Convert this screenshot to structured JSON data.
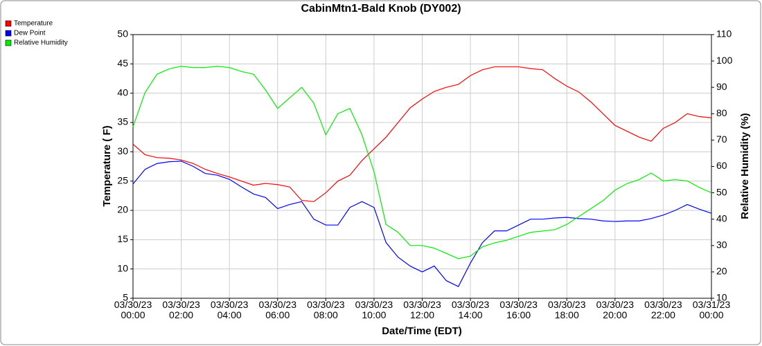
{
  "chart_data": {
    "type": "line",
    "title": "CabinMtn1-Bald Knob (DY002)",
    "xlabel": "Date/Time (EDT)",
    "ylabel": "Temperature ( F)",
    "y2label": "Relative Humidity (%)",
    "legend": "top-left",
    "grid": true,
    "x": [
      "03/30/23 00:00",
      "03/30/23 00:30",
      "03/30/23 01:00",
      "03/30/23 01:30",
      "03/30/23 02:00",
      "03/30/23 02:30",
      "03/30/23 03:00",
      "03/30/23 03:30",
      "03/30/23 04:00",
      "03/30/23 04:30",
      "03/30/23 05:00",
      "03/30/23 05:30",
      "03/30/23 06:00",
      "03/30/23 06:30",
      "03/30/23 07:00",
      "03/30/23 07:30",
      "03/30/23 08:00",
      "03/30/23 08:30",
      "03/30/23 09:00",
      "03/30/23 09:30",
      "03/30/23 10:00",
      "03/30/23 10:30",
      "03/30/23 11:00",
      "03/30/23 11:30",
      "03/30/23 12:00",
      "03/30/23 12:30",
      "03/30/23 13:00",
      "03/30/23 13:30",
      "03/30/23 14:00",
      "03/30/23 14:30",
      "03/30/23 15:00",
      "03/30/23 15:30",
      "03/30/23 16:00",
      "03/30/23 16:30",
      "03/30/23 17:00",
      "03/30/23 17:30",
      "03/30/23 18:00",
      "03/30/23 18:30",
      "03/30/23 19:00",
      "03/30/23 19:30",
      "03/30/23 20:00",
      "03/30/23 20:30",
      "03/30/23 21:00",
      "03/30/23 21:30",
      "03/30/23 22:00",
      "03/30/23 22:30",
      "03/30/23 23:00",
      "03/30/23 23:30",
      "03/31/23 00:00"
    ],
    "series": [
      {
        "name": "Temperature",
        "color": "#ff0000",
        "values": [
          31.3,
          29.5,
          29,
          28.9,
          28.6,
          28,
          27,
          26.3,
          25.7,
          25,
          24.3,
          24.6,
          24.4,
          24,
          21.7,
          21.5,
          23,
          25,
          26,
          28.5,
          30.5,
          32.5,
          35,
          37.5,
          39,
          40.3,
          41,
          41.5,
          43,
          44,
          44.5,
          44.5,
          44.5,
          44.2,
          44,
          42.5,
          41.2,
          40.2,
          38.5,
          36.5,
          34.5,
          33.5,
          32.5,
          31.8,
          34,
          35,
          36.5,
          36,
          35.8
        ]
      },
      {
        "name": "Dew Point",
        "color": "#0000ff",
        "values": [
          24.5,
          27,
          28,
          28.3,
          28.4,
          27.5,
          26.3,
          26,
          25.3,
          24,
          22.8,
          22.2,
          20.3,
          21,
          21.5,
          18.5,
          17.5,
          17.5,
          20.5,
          21.5,
          20.5,
          14.5,
          12,
          10.5,
          9.5,
          10.5,
          8,
          7,
          11,
          14.5,
          16.5,
          16.5,
          17.5,
          18.5,
          18.5,
          18.7,
          18.8,
          18.6,
          18.5,
          18.2,
          18.1,
          18.2,
          18.2,
          18.6,
          19.2,
          20,
          21,
          20.2,
          19.5
        ]
      },
      {
        "name": "Relative Humidity",
        "color": "#00ee00",
        "axis": "y2",
        "values": [
          75,
          88,
          95,
          97,
          98,
          97.5,
          97.5,
          98,
          97.5,
          96,
          95,
          89,
          82,
          86,
          90,
          84,
          72,
          80,
          82,
          72,
          58,
          38,
          35,
          30,
          30,
          29,
          27,
          25,
          26,
          29.5,
          31,
          32,
          33.5,
          35,
          35.5,
          36,
          38,
          41,
          44,
          47,
          51,
          53.5,
          55,
          57.5,
          54.5,
          55,
          54.5,
          52,
          50
        ]
      }
    ],
    "xlim": [
      "03/30/23 00:00",
      "03/31/23 00:00"
    ],
    "xticks": [
      "03/30/23 00:00",
      "03/30/23 02:00",
      "03/30/23 04:00",
      "03/30/23 06:00",
      "03/30/23 08:00",
      "03/30/23 10:00",
      "03/30/23 12:00",
      "03/30/23 14:00",
      "03/30/23 16:00",
      "03/30/23 18:00",
      "03/30/23 20:00",
      "03/30/23 22:00",
      "03/31/23 00:00"
    ],
    "ylim": [
      5,
      50
    ],
    "yticks": [
      5,
      10,
      15,
      20,
      25,
      30,
      35,
      40,
      45,
      50
    ],
    "y2lim": [
      10,
      110
    ],
    "y2ticks": [
      10,
      20,
      30,
      40,
      50,
      60,
      70,
      80,
      90,
      100,
      110
    ]
  }
}
